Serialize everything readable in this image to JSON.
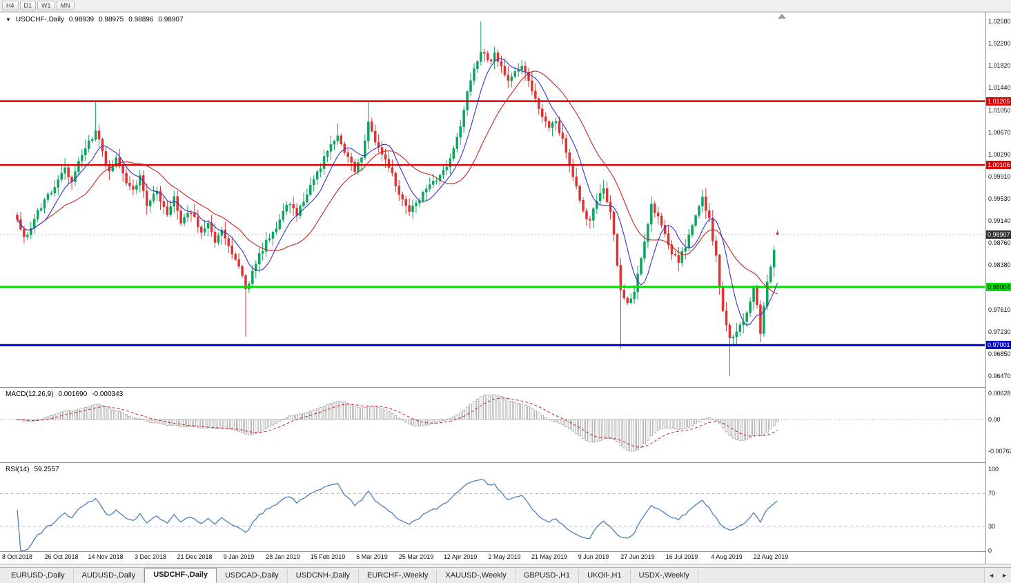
{
  "toolbar": {
    "timeframes": [
      "H4",
      "D1",
      "W1",
      "MN"
    ]
  },
  "chart": {
    "title": "USDCHF-,Daily",
    "dropdown_icon": "▼",
    "ohlc": {
      "open": "0.98939",
      "high": "0.98975",
      "low": "0.98896",
      "close": "0.98907"
    },
    "current_price": "0.98907",
    "y_axis_ticks": [
      "1.02580",
      "1.02200",
      "1.01820",
      "1.01440",
      "1.01050",
      "1.00670",
      "1.00290",
      "0.99910",
      "0.99530",
      "0.99140",
      "0.98760",
      "0.98380",
      "0.97610",
      "0.97230",
      "0.96850",
      "0.96470"
    ],
    "levels": [
      {
        "name": "resistance-upper",
        "price": 1.01205,
        "label": "1.01205",
        "color": "#dd0000",
        "text_color": "#ffffff",
        "width": 2.5
      },
      {
        "name": "resistance-lower",
        "price": 1.00106,
        "label": "1.00106",
        "color": "#dd0000",
        "text_color": "#ffffff",
        "width": 2.5
      },
      {
        "name": "support-green",
        "price": 0.98004,
        "label": "0.98004",
        "color": "#00dd00",
        "text_color": "#000000",
        "width": 3
      },
      {
        "name": "support-blue",
        "price": 0.97001,
        "label": "0.97001",
        "color": "#0000cc",
        "text_color": "#ffffff",
        "width": 3
      }
    ],
    "x_axis_labels": [
      {
        "i": 0,
        "t": "8 Oct 2018"
      },
      {
        "i": 13,
        "t": "26 Oct 2018"
      },
      {
        "i": 26,
        "t": "14 Nov 2018"
      },
      {
        "i": 39,
        "t": "3 Dec 2018"
      },
      {
        "i": 52,
        "t": "21 Dec 2018"
      },
      {
        "i": 65,
        "t": "9 Jan 2019"
      },
      {
        "i": 78,
        "t": "28 Jan 2019"
      },
      {
        "i": 91,
        "t": "15 Feb 2019"
      },
      {
        "i": 104,
        "t": "6 Mar 2019"
      },
      {
        "i": 117,
        "t": "25 Mar 2019"
      },
      {
        "i": 130,
        "t": "12 Apr 2019"
      },
      {
        "i": 143,
        "t": "2 May 2019"
      },
      {
        "i": 156,
        "t": "21 May 2019"
      },
      {
        "i": 169,
        "t": "9 Jun 2019"
      },
      {
        "i": 182,
        "t": "27 Jun 2019"
      },
      {
        "i": 195,
        "t": "16 Jul 2019"
      },
      {
        "i": 208,
        "t": "4 Aug 2019"
      },
      {
        "i": 221,
        "t": "22 Aug 2019"
      }
    ]
  },
  "chart_data": {
    "type": "candlestick",
    "symbol": "USDCHF",
    "timeframe": "Daily",
    "candle_count": 224,
    "y_axis": {
      "min": 0.9628,
      "max": 1.0258
    },
    "last_candle": {
      "open": 0.98939,
      "high": 0.98975,
      "low": 0.98896,
      "close": 0.98907
    },
    "horizontal_levels": [
      1.01205,
      1.00106,
      0.98004,
      0.97001
    ],
    "close_anchors": [
      [
        0,
        0.9912
      ],
      [
        2,
        0.9882
      ],
      [
        4,
        0.9905
      ],
      [
        6,
        0.9932
      ],
      [
        9,
        0.9958
      ],
      [
        12,
        0.9985
      ],
      [
        14,
        1.0005
      ],
      [
        16,
        0.9985
      ],
      [
        18,
        1.0015
      ],
      [
        21,
        1.0048
      ],
      [
        23,
        1.0072
      ],
      [
        25,
        1.003
      ],
      [
        27,
        0.9998
      ],
      [
        29,
        1.0018
      ],
      [
        31,
        0.9992
      ],
      [
        34,
        0.9968
      ],
      [
        36,
        0.9992
      ],
      [
        38,
        0.9945
      ],
      [
        41,
        0.9962
      ],
      [
        44,
        0.993
      ],
      [
        46,
        0.9952
      ],
      [
        48,
        0.9912
      ],
      [
        51,
        0.9932
      ],
      [
        54,
        0.9896
      ],
      [
        56,
        0.9912
      ],
      [
        58,
        0.9882
      ],
      [
        60,
        0.99
      ],
      [
        62,
        0.9868
      ],
      [
        64,
        0.9845
      ],
      [
        66,
        0.9822
      ],
      [
        67,
        0.9792
      ],
      [
        69,
        0.9825
      ],
      [
        71,
        0.9855
      ],
      [
        74,
        0.9888
      ],
      [
        77,
        0.9915
      ],
      [
        79,
        0.9945
      ],
      [
        82,
        0.9928
      ],
      [
        85,
        0.9962
      ],
      [
        88,
        0.9998
      ],
      [
        91,
        1.0032
      ],
      [
        94,
        1.0058
      ],
      [
        96,
        1.003
      ],
      [
        99,
        1.0002
      ],
      [
        101,
        1.0028
      ],
      [
        103,
        1.0082
      ],
      [
        105,
        1.0055
      ],
      [
        107,
        1.0028
      ],
      [
        109,
        1.0008
      ],
      [
        112,
        0.9962
      ],
      [
        115,
        0.9932
      ],
      [
        118,
        0.9952
      ],
      [
        121,
        0.9972
      ],
      [
        124,
        0.9992
      ],
      [
        126,
        1.0012
      ],
      [
        128,
        1.0042
      ],
      [
        130,
        1.0082
      ],
      [
        132,
        1.0132
      ],
      [
        134,
        1.0178
      ],
      [
        136,
        1.0208
      ],
      [
        138,
        1.0188
      ],
      [
        140,
        1.0202
      ],
      [
        142,
        1.0178
      ],
      [
        144,
        1.0152
      ],
      [
        146,
        1.0172
      ],
      [
        148,
        1.0186
      ],
      [
        150,
        1.0152
      ],
      [
        152,
        1.0122
      ],
      [
        154,
        1.0098
      ],
      [
        156,
        1.0072
      ],
      [
        158,
        1.0088
      ],
      [
        160,
        1.0052
      ],
      [
        162,
        1.0012
      ],
      [
        164,
        0.9972
      ],
      [
        166,
        0.9932
      ],
      [
        168,
        0.9912
      ],
      [
        170,
        0.9948
      ],
      [
        172,
        0.9965
      ],
      [
        174,
        0.9932
      ],
      [
        175,
        0.9892
      ],
      [
        176,
        0.9838
      ],
      [
        177,
        0.9792
      ],
      [
        179,
        0.9772
      ],
      [
        181,
        0.9788
      ],
      [
        183,
        0.9852
      ],
      [
        185,
        0.9912
      ],
      [
        186,
        0.9942
      ],
      [
        188,
        0.9922
      ],
      [
        190,
        0.9892
      ],
      [
        192,
        0.9862
      ],
      [
        194,
        0.9842
      ],
      [
        196,
        0.9872
      ],
      [
        198,
        0.9912
      ],
      [
        200,
        0.9938
      ],
      [
        201,
        0.9952
      ],
      [
        203,
        0.9918
      ],
      [
        205,
        0.9852
      ],
      [
        206,
        0.9802
      ],
      [
        207,
        0.9762
      ],
      [
        209,
        0.9712
      ],
      [
        211,
        0.9722
      ],
      [
        213,
        0.9742
      ],
      [
        215,
        0.9772
      ],
      [
        216,
        0.9802
      ],
      [
        217,
        0.9772
      ],
      [
        218,
        0.9722
      ],
      [
        219,
        0.9762
      ],
      [
        220,
        0.9812
      ],
      [
        221,
        0.9832
      ],
      [
        222,
        0.9862
      ],
      [
        223,
        0.98907
      ]
    ],
    "wick_overrides": {
      "23": {
        "high": 1.0122
      },
      "67": {
        "low": 0.9715
      },
      "94": {
        "high": 1.0082
      },
      "103": {
        "high": 1.012
      },
      "136": {
        "high": 1.0258
      },
      "177": {
        "low": 0.9695
      },
      "201": {
        "high": 0.9968
      },
      "209": {
        "low": 0.9647
      },
      "218": {
        "low": 0.9705
      }
    },
    "indicators": {
      "moving_averages": [
        {
          "period": 8,
          "color": "#3232c8"
        },
        {
          "period": 21,
          "color": "#cc2222"
        }
      ],
      "macd": {
        "fast": 12,
        "slow": 26,
        "signal": 9,
        "current_main": 0.00169,
        "current_signal": -0.000343,
        "axis_max": 0.006286,
        "axis_min": -0.00762
      },
      "rsi": {
        "period": 14,
        "current": 59.2557,
        "levels": [
          70,
          30
        ]
      }
    }
  },
  "macd": {
    "label": "MACD(12,26,9)",
    "value_main": "0.001690",
    "value_signal": "-0.000343",
    "axis": [
      "0.006286",
      "0.00",
      "-0.00762"
    ]
  },
  "rsi": {
    "label": "RSI(14)",
    "value": "59.2557",
    "axis": [
      "100",
      "70",
      "30",
      "0"
    ]
  },
  "tabs": {
    "items": [
      "EURUSD-,Daily",
      "AUDUSD-,Daily",
      "USDCHF-,Daily",
      "USDCAD-,Daily",
      "USDCNH-,Daily",
      "EURCHF-,Weekly",
      "XAUUSD-,Weekly",
      "GBPUSD-,H1",
      "UKOil-,H1",
      "USDX-,Weekly"
    ],
    "active_index": 2,
    "scroll_left_icon": "◄",
    "scroll_right_icon": "►"
  },
  "colors": {
    "bull": "#0aa55e",
    "bear": "#dc3434",
    "ma_fast": "#3232c8",
    "ma_slow": "#cc2222",
    "macd_signal": "#cc2222",
    "macd_hist_stroke": "#949494",
    "rsi_line": "#4a7ebb",
    "current_price_bg": "#303030",
    "current_price_text": "#ffffff"
  }
}
